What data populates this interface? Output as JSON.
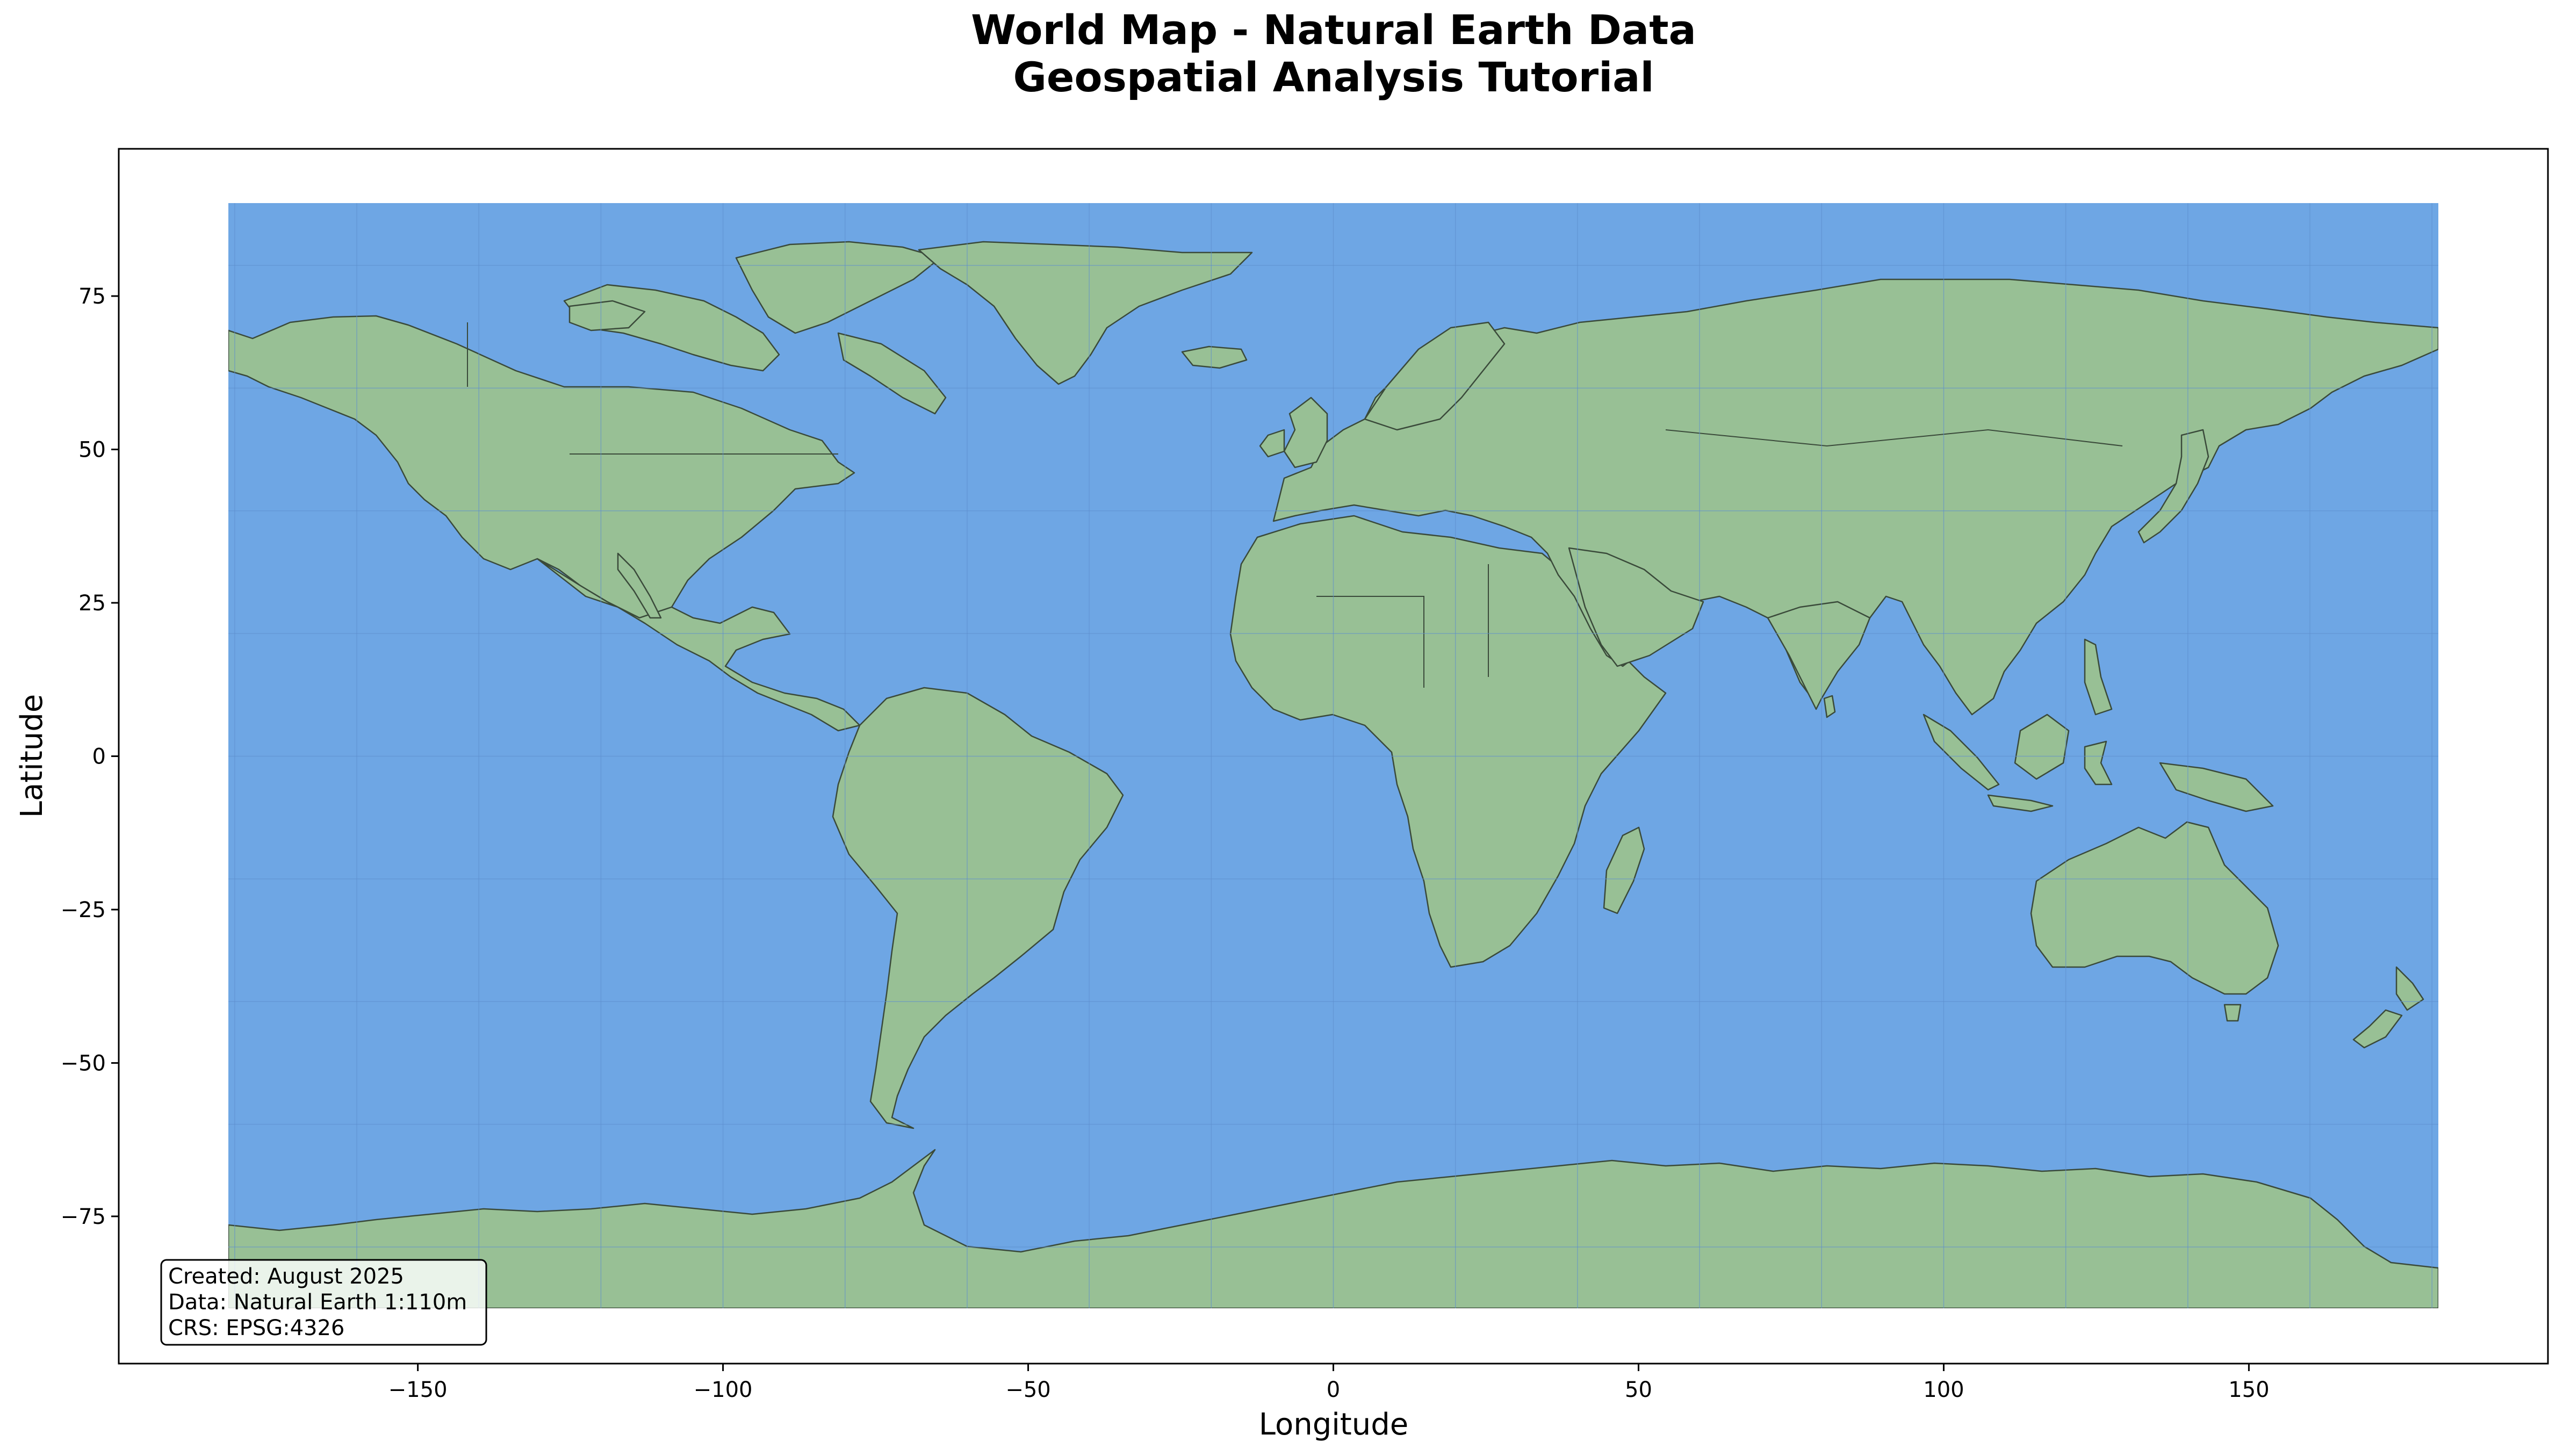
{
  "title": {
    "line1": "World Map - Natural Earth Data",
    "line2": "Geospatial Analysis Tutorial"
  },
  "chart_data": {
    "type": "map",
    "projection": "EPSG:4326 (plate carrée)",
    "xlabel": "Longitude",
    "ylabel": "Latitude",
    "xlim": [
      -199,
      199
    ],
    "ylim": [
      -99,
      99
    ],
    "x_ticks": [
      -150,
      -100,
      -50,
      0,
      50,
      100,
      150
    ],
    "y_ticks": [
      75,
      50,
      25,
      0,
      -25,
      -50,
      -75
    ],
    "map_extent": {
      "lon": [
        -180,
        180
      ],
      "lat": [
        -90,
        90
      ]
    },
    "grid": true,
    "colors": {
      "ocean": "#6ea6e4",
      "land": "#98c095",
      "border": "#3a4a3a"
    }
  },
  "info_box": {
    "line1": "Created: August 2025",
    "line2": "Data: Natural Earth 1:110m",
    "line3": "CRS: EPSG:4326",
    "placement": "bottom-left"
  }
}
